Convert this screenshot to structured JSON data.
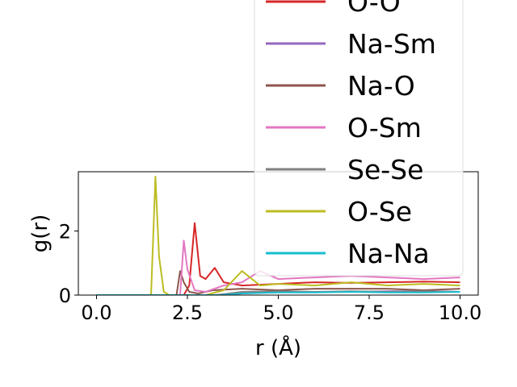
{
  "chart_data": {
    "type": "line",
    "xlabel": "r (Å)",
    "ylabel": "g(r)",
    "xlim": [
      -0.5,
      10.5
    ],
    "ylim": [
      0,
      3.85
    ],
    "xticks": [
      0.0,
      2.5,
      5.0,
      7.5,
      10.0
    ],
    "xtick_labels": [
      "0.0",
      "2.5",
      "5.0",
      "7.5",
      "10.0"
    ],
    "yticks": [
      0,
      2
    ],
    "ytick_labels": [
      "0",
      "2"
    ],
    "grid": false,
    "legend_position": "upper right, overflowing above the axes",
    "series": [
      {
        "name": "O-O",
        "color": "#d62728",
        "x": [
          0,
          2.4,
          2.55,
          2.7,
          2.85,
          3.0,
          3.25,
          3.5,
          4.0,
          5.0,
          6.0,
          7.0,
          8.0,
          9.0,
          10.0
        ],
        "y": [
          0,
          0,
          0.3,
          2.25,
          0.6,
          0.5,
          0.85,
          0.4,
          0.3,
          0.35,
          0.4,
          0.38,
          0.4,
          0.42,
          0.4
        ]
      },
      {
        "name": "Na-Sm",
        "color": "#9467bd",
        "x": [
          0,
          3.2,
          4.0,
          5.0,
          6.0,
          7.0,
          8.0,
          9.0,
          10.0
        ],
        "y": [
          0,
          0,
          0.05,
          0.1,
          0.1,
          0.1,
          0.12,
          0.12,
          0.1
        ]
      },
      {
        "name": "Na-O",
        "color": "#8c564b",
        "x": [
          0,
          2.2,
          2.3,
          2.4,
          2.55,
          2.8,
          3.2,
          4.0,
          5.0,
          6.0,
          7.0,
          8.0,
          9.0,
          10.0
        ],
        "y": [
          0,
          0,
          0.75,
          0.4,
          0.1,
          0.05,
          0.15,
          0.2,
          0.15,
          0.2,
          0.2,
          0.2,
          0.15,
          0.2
        ]
      },
      {
        "name": "O-Sm",
        "color": "#e377c2",
        "x": [
          0,
          2.3,
          2.4,
          2.5,
          2.7,
          3.0,
          3.5,
          4.0,
          4.5,
          5.0,
          6.0,
          7.0,
          8.0,
          9.0,
          10.0
        ],
        "y": [
          0,
          0,
          1.7,
          0.8,
          0.15,
          0.1,
          0.3,
          0.4,
          0.75,
          0.5,
          0.55,
          0.6,
          0.55,
          0.5,
          0.55
        ]
      },
      {
        "name": "Se-Se",
        "color": "#7f7f7f",
        "x": [
          0,
          3.3,
          4.0,
          5.0,
          6.0,
          7.0,
          8.0,
          9.0,
          10.0
        ],
        "y": [
          0,
          0,
          0.1,
          0.12,
          0.1,
          0.12,
          0.1,
          0.12,
          0.1
        ]
      },
      {
        "name": "O-Se",
        "color": "#bcbd22",
        "x": [
          0,
          1.5,
          1.62,
          1.72,
          1.85,
          2.0,
          3.0,
          3.5,
          4.0,
          4.5,
          5.0,
          6.0,
          7.0,
          8.0,
          9.0,
          10.0
        ],
        "y": [
          0,
          0,
          3.7,
          1.2,
          0.1,
          0,
          0,
          0.15,
          0.75,
          0.3,
          0.35,
          0.3,
          0.4,
          0.3,
          0.35,
          0.3
        ]
      },
      {
        "name": "Na-Na",
        "color": "#17becf",
        "x": [
          0,
          3.4,
          4.0,
          5.0,
          6.0,
          7.0,
          8.0,
          9.0,
          10.0
        ],
        "y": [
          0,
          0,
          0.05,
          0.08,
          0.08,
          0.1,
          0.08,
          0.08,
          0.1
        ]
      }
    ]
  }
}
